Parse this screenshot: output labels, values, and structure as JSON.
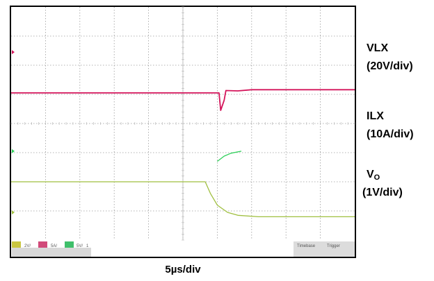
{
  "chart_data": {
    "type": "line",
    "xlabel": "5µs/div",
    "x_unit": "µs",
    "time_per_div_us": 5,
    "divisions": {
      "x": 10,
      "y": 8
    },
    "grid": true,
    "series": [
      {
        "name": "VLX",
        "scale": "(20V/div)",
        "color": "#d4145a",
        "ground_div": 1.55,
        "points_div": [
          [
            0,
            2.95
          ],
          [
            6.05,
            2.95
          ],
          [
            6.1,
            3.55
          ],
          [
            6.2,
            3.2
          ],
          [
            6.25,
            2.87
          ],
          [
            6.6,
            2.88
          ],
          [
            7.0,
            2.84
          ],
          [
            10,
            2.84
          ]
        ]
      },
      {
        "name": "ILX",
        "scale": "(10A/div)",
        "color": "#2fd05a",
        "ground_div": 4.95,
        "points_div": [
          [
            6.0,
            5.3
          ],
          [
            6.2,
            5.12
          ],
          [
            6.4,
            5.02
          ],
          [
            6.7,
            4.95
          ]
        ]
      },
      {
        "name": "V",
        "name_sub": "O",
        "scale": "(1V/div)",
        "color": "#9fbf3f",
        "ground_div": 7.05,
        "points_div": [
          [
            0,
            6.0
          ],
          [
            5.65,
            6.0
          ],
          [
            5.8,
            6.4
          ],
          [
            6.0,
            6.8
          ],
          [
            6.3,
            7.05
          ],
          [
            6.6,
            7.15
          ],
          [
            7.2,
            7.2
          ],
          [
            10,
            7.2
          ]
        ]
      }
    ]
  },
  "status_bar": {
    "left": [
      "2V/",
      "5A/",
      "5V/",
      "1"
    ],
    "right": [
      "Timebase",
      "Trigger"
    ]
  }
}
